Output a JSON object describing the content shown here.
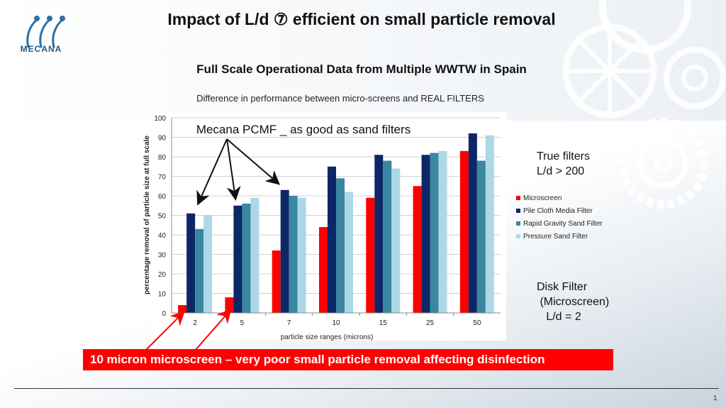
{
  "slide": {
    "title": "Impact of L/d ⑦ efficient on small particle removal",
    "subtitle": "Full Scale Operational Data  from Multiple WWTW in Spain",
    "logo_text": "MECANA",
    "true_filters_note": "True filters\nL/d > 200",
    "disk_filter_note": "Disk Filter\n (Microscreen)\n   L/d = 2",
    "arrow_annotation": "Mecana PCMF _ as good as sand filters",
    "callout": "10 micron microscreen – very poor small particle removal affecting disinfection",
    "page_number": "1"
  },
  "colors": {
    "Microscreen": "#ff0000",
    "Pile Cloth Media Filter": "#0d2766",
    "Rapid Gravity Sand Filter": "#3b86a0",
    "Pressure Sand Filter": "#add8e6"
  },
  "chart_data": {
    "type": "bar",
    "title": "Difference in performance between micro-screens and REAL FILTERS",
    "xlabel": "particle size ranges (microns)",
    "ylabel": "percentage removal of particle size at full scale",
    "ylim": [
      0,
      100
    ],
    "yticks": [
      "0",
      "10",
      "20",
      "30",
      "40",
      "50",
      "60",
      "70",
      "80",
      "90",
      "100"
    ],
    "categories": [
      "2",
      "5",
      "7",
      "10",
      "15",
      "25",
      "50"
    ],
    "series": [
      {
        "name": "Microscreen",
        "values": [
          4,
          8,
          32,
          44,
          59,
          65,
          83
        ]
      },
      {
        "name": "Pile Cloth Media Filter",
        "values": [
          51,
          55,
          63,
          75,
          81,
          81,
          92
        ]
      },
      {
        "name": "Rapid Gravity Sand Filter",
        "values": [
          43,
          56,
          60,
          69,
          78,
          82,
          78
        ]
      },
      {
        "name": "Pressure Sand Filter",
        "values": [
          50,
          59,
          59,
          62,
          74,
          83,
          91
        ]
      }
    ],
    "grid": true,
    "legend": "right"
  }
}
